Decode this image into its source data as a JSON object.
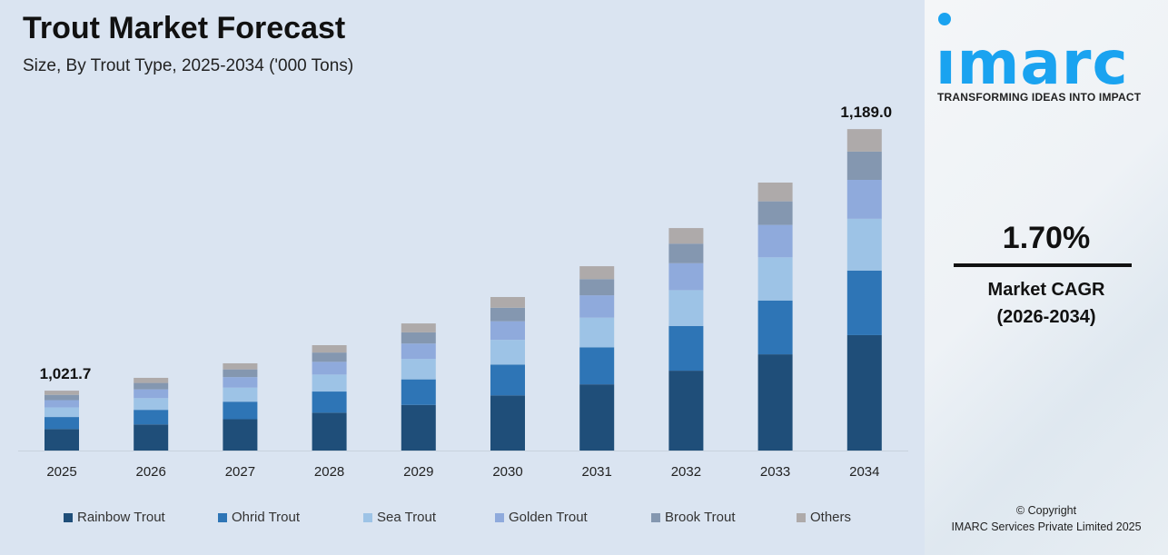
{
  "header": {
    "title": "Trout Market Forecast",
    "subtitle": "Size, By Trout Type, 2025-2034 ('000 Tons)"
  },
  "chart_data": {
    "type": "bar",
    "stacked": true,
    "title": "Trout Market Forecast",
    "subtitle": "Size, By Trout Type, 2025-2034 ('000 Tons)",
    "categories": [
      "2025",
      "2026",
      "2027",
      "2028",
      "2029",
      "2030",
      "2031",
      "2032",
      "2033",
      "2034"
    ],
    "totals": [
      1021.7,
      1029.9,
      1039.2,
      1050.8,
      1064.7,
      1081.6,
      1101.3,
      1125.7,
      1154.8,
      1189.0
    ],
    "total_labels": {
      "0": "1,021.7",
      "9": "1,189.0"
    },
    "series": [
      {
        "name": "Rainbow Trout",
        "color": "#1f4e79",
        "values": [
          366.8,
          369.7,
          373.1,
          377.2,
          382.2,
          388.3,
          395.4,
          404.1,
          414.6,
          426.9
        ]
      },
      {
        "name": "Ohrid Trout",
        "color": "#2e75b6",
        "values": [
          205.4,
          207.0,
          208.9,
          211.2,
          214.0,
          217.4,
          221.4,
          226.3,
          232.1,
          239.0
        ]
      },
      {
        "name": "Sea Trout",
        "color": "#9dc3e6",
        "values": [
          164.5,
          165.8,
          167.3,
          169.2,
          171.4,
          174.1,
          177.3,
          181.2,
          185.9,
          191.4
        ]
      },
      {
        "name": "Golden Trout",
        "color": "#8faadc",
        "values": [
          123.6,
          124.6,
          125.7,
          127.1,
          128.8,
          130.9,
          133.3,
          136.2,
          139.7,
          143.9
        ]
      },
      {
        "name": "Brook Trout",
        "color": "#8497b0",
        "values": [
          89.9,
          90.6,
          91.4,
          92.5,
          93.7,
          95.2,
          96.9,
          99.1,
          101.6,
          104.6
        ]
      },
      {
        "name": "Others",
        "color": "#aeaaaa",
        "values": [
          71.5,
          72.2,
          72.8,
          73.6,
          74.6,
          75.7,
          77.0,
          78.8,
          80.9,
          83.2
        ]
      }
    ],
    "legend_position": "bottom",
    "grid": false,
    "y_axis_visible": false
  },
  "sidebar": {
    "brand": "imarc",
    "tagline": "TRANSFORMING IDEAS INTO IMPACT",
    "brand_color": "#1aa3f0",
    "cagr_value": "1.70%",
    "cagr_label": "Market CAGR",
    "cagr_period": "(2026-2034)",
    "copyright": "© Copyright",
    "company": "IMARC Services Private Limited 2025"
  }
}
